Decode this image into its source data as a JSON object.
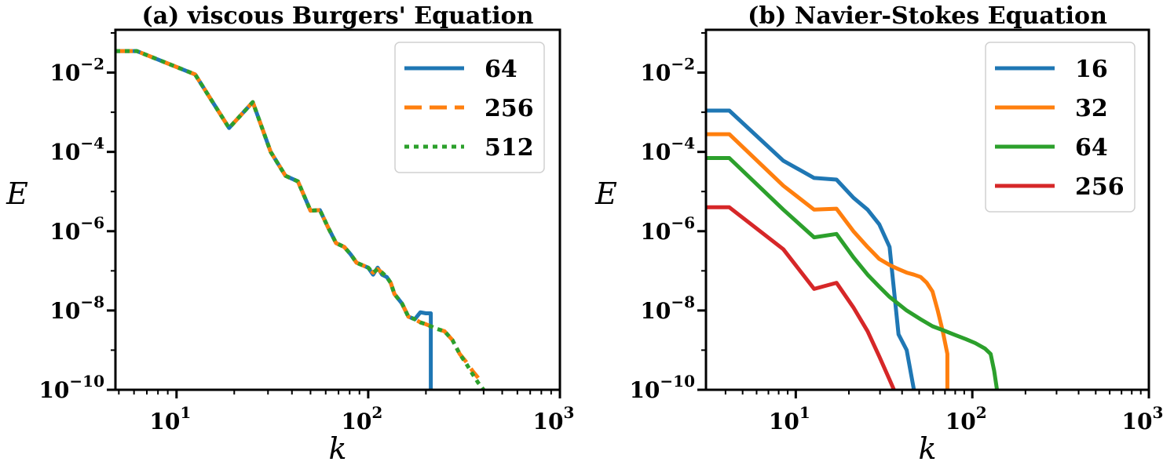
{
  "chart_data": [
    {
      "type": "line",
      "title": "(a) viscous Burgers' Equation",
      "xlabel": "k",
      "ylabel": "E",
      "xscale": "log",
      "yscale": "log",
      "xlim": [
        4.8,
        1000
      ],
      "ylim": [
        1e-10,
        0.12
      ],
      "x_ticks": [
        {
          "value": 10,
          "base": "10",
          "exp": "1"
        },
        {
          "value": 100,
          "base": "10",
          "exp": "2"
        },
        {
          "value": 1000,
          "base": "10",
          "exp": "3"
        }
      ],
      "y_ticks": [
        {
          "value": 0.01,
          "base": "10",
          "exp": "−2"
        },
        {
          "value": 0.0001,
          "base": "10",
          "exp": "−4"
        },
        {
          "value": 1e-06,
          "base": "10",
          "exp": "−6"
        },
        {
          "value": 1e-08,
          "base": "10",
          "exp": "−8"
        },
        {
          "value": 1e-10,
          "base": "10",
          "exp": "−10"
        }
      ],
      "legend_position": "top-right",
      "series": [
        {
          "name": "64",
          "color": "#1f77b4",
          "dash": "solid",
          "x": [
            4.8,
            6.2,
            12.5,
            18.8,
            25,
            31,
            37,
            43,
            50,
            56,
            62,
            68,
            75,
            81,
            87,
            100,
            106,
            112,
            118,
            125,
            131,
            137,
            150,
            162,
            175,
            187,
            200,
            212,
            212
          ],
          "y": [
            0.035,
            0.035,
            0.009,
            0.0004,
            0.0018,
            0.0001,
            2.5e-05,
            1.8e-05,
            3.3e-06,
            3.4e-06,
            1.2e-06,
            5e-07,
            4e-07,
            2.6e-07,
            1.6e-07,
            1.2e-07,
            8e-08,
            1.2e-07,
            8e-08,
            7e-08,
            5e-08,
            2.6e-08,
            1.5e-08,
            7e-09,
            6e-09,
            9e-09,
            8.5e-09,
            8.5e-09,
            1e-10
          ]
        },
        {
          "name": "256",
          "color": "#ff7f0e",
          "dash": "dashed",
          "x": [
            4.8,
            6.2,
            12.5,
            18.8,
            25,
            31,
            37,
            43,
            50,
            56,
            62,
            68,
            75,
            81,
            87,
            100,
            106,
            112,
            118,
            125,
            131,
            137,
            150,
            162,
            175,
            187,
            200,
            212,
            225,
            250,
            275,
            300,
            325,
            350,
            375
          ],
          "y": [
            0.035,
            0.035,
            0.009,
            0.0004,
            0.0018,
            0.0001,
            2.5e-05,
            1.8e-05,
            3.3e-06,
            3.4e-06,
            1.2e-06,
            5e-07,
            4e-07,
            2.6e-07,
            1.6e-07,
            1.2e-07,
            9e-08,
            1.1e-07,
            9e-08,
            7e-08,
            5e-08,
            2.6e-08,
            1.5e-08,
            7e-09,
            6e-09,
            5e-09,
            4.5e-09,
            4e-09,
            3.5e-09,
            3e-09,
            1.8e-09,
            8e-10,
            5e-10,
            3e-10,
            2e-10
          ]
        },
        {
          "name": "512",
          "color": "#2ca02c",
          "dash": "dotted",
          "x": [
            4.8,
            6.2,
            12.5,
            18.8,
            25,
            31,
            37,
            43,
            50,
            56,
            62,
            68,
            75,
            81,
            87,
            100,
            106,
            112,
            118,
            125,
            131,
            137,
            150,
            162,
            175,
            187,
            200,
            212,
            225,
            250,
            275,
            300,
            325,
            350,
            375,
            400
          ],
          "y": [
            0.035,
            0.035,
            0.009,
            0.0004,
            0.0018,
            0.0001,
            2.5e-05,
            1.8e-05,
            3.3e-06,
            3.4e-06,
            1.2e-06,
            5e-07,
            4e-07,
            2.6e-07,
            1.6e-07,
            1.2e-07,
            9e-08,
            1.1e-07,
            9e-08,
            7e-08,
            5e-08,
            2.6e-08,
            1.5e-08,
            7e-09,
            6e-09,
            5e-09,
            4.5e-09,
            4e-09,
            3.5e-09,
            3e-09,
            1.8e-09,
            8e-10,
            4.5e-10,
            2.5e-10,
            1.5e-10,
            1e-10
          ]
        }
      ]
    },
    {
      "type": "line",
      "title": "(b) Navier-Stokes Equation",
      "xlabel": "k",
      "ylabel": "E",
      "xscale": "log",
      "yscale": "log",
      "xlim": [
        3.1,
        1000
      ],
      "ylim": [
        1e-10,
        0.12
      ],
      "x_ticks": [
        {
          "value": 10,
          "base": "10",
          "exp": "1"
        },
        {
          "value": 100,
          "base": "10",
          "exp": "2"
        },
        {
          "value": 1000,
          "base": "10",
          "exp": "3"
        }
      ],
      "y_ticks": [
        {
          "value": 0.01,
          "base": "10",
          "exp": "−2"
        },
        {
          "value": 0.0001,
          "base": "10",
          "exp": "−4"
        },
        {
          "value": 1e-06,
          "base": "10",
          "exp": "−6"
        },
        {
          "value": 1e-08,
          "base": "10",
          "exp": "−8"
        },
        {
          "value": 1e-10,
          "base": "10",
          "exp": "−10"
        }
      ],
      "legend_position": "top-right",
      "series": [
        {
          "name": "16",
          "color": "#1f77b4",
          "dash": "solid",
          "x": [
            3.1,
            4.2,
            8.5,
            12.7,
            17,
            21.2,
            25.5,
            29.7,
            34,
            38.2,
            42.5,
            46.7
          ],
          "y": [
            0.0011,
            0.0011,
            6e-05,
            2.2e-05,
            2e-05,
            7e-06,
            3.5e-06,
            1.5e-06,
            4e-07,
            2.5e-09,
            1e-09,
            1e-10
          ]
        },
        {
          "name": "32",
          "color": "#ff7f0e",
          "dash": "solid",
          "x": [
            3.1,
            4.2,
            8.5,
            12.7,
            17,
            21.2,
            25.5,
            29.7,
            34,
            38.2,
            42.5,
            46.7,
            51,
            55.2,
            59.5,
            63.7,
            68,
            72.2,
            72.2
          ],
          "y": [
            0.00028,
            0.00028,
            1.4e-05,
            3.5e-06,
            3.7e-06,
            1e-06,
            4e-07,
            2e-07,
            1.4e-07,
            1.1e-07,
            9e-08,
            8e-08,
            7e-08,
            5e-08,
            3e-08,
            1e-08,
            3e-09,
            8e-10,
            1e-10
          ]
        },
        {
          "name": "64",
          "color": "#2ca02c",
          "dash": "solid",
          "x": [
            3.1,
            4.2,
            8.5,
            12.7,
            17,
            21.2,
            25.5,
            29.7,
            34,
            42.5,
            51,
            59.5,
            68,
            80,
            92,
            104,
            118,
            127,
            133,
            138
          ],
          "y": [
            7e-05,
            7e-05,
            3.5e-06,
            7e-07,
            8.5e-07,
            2.2e-07,
            8e-08,
            4e-08,
            2.2e-08,
            1e-08,
            6e-09,
            4e-09,
            3.2e-09,
            2.4e-09,
            1.9e-09,
            1.5e-09,
            1.1e-09,
            8e-10,
            3e-10,
            1e-10
          ]
        },
        {
          "name": "256",
          "color": "#d62728",
          "dash": "solid",
          "x": [
            3.1,
            4.2,
            8.5,
            12.7,
            17,
            21.2,
            25.5,
            29.7,
            34,
            36
          ],
          "y": [
            4e-06,
            4e-06,
            3.5e-07,
            3.5e-08,
            5e-08,
            1.2e-08,
            3e-09,
            7e-10,
            1.8e-10,
            1e-10
          ]
        }
      ]
    }
  ]
}
